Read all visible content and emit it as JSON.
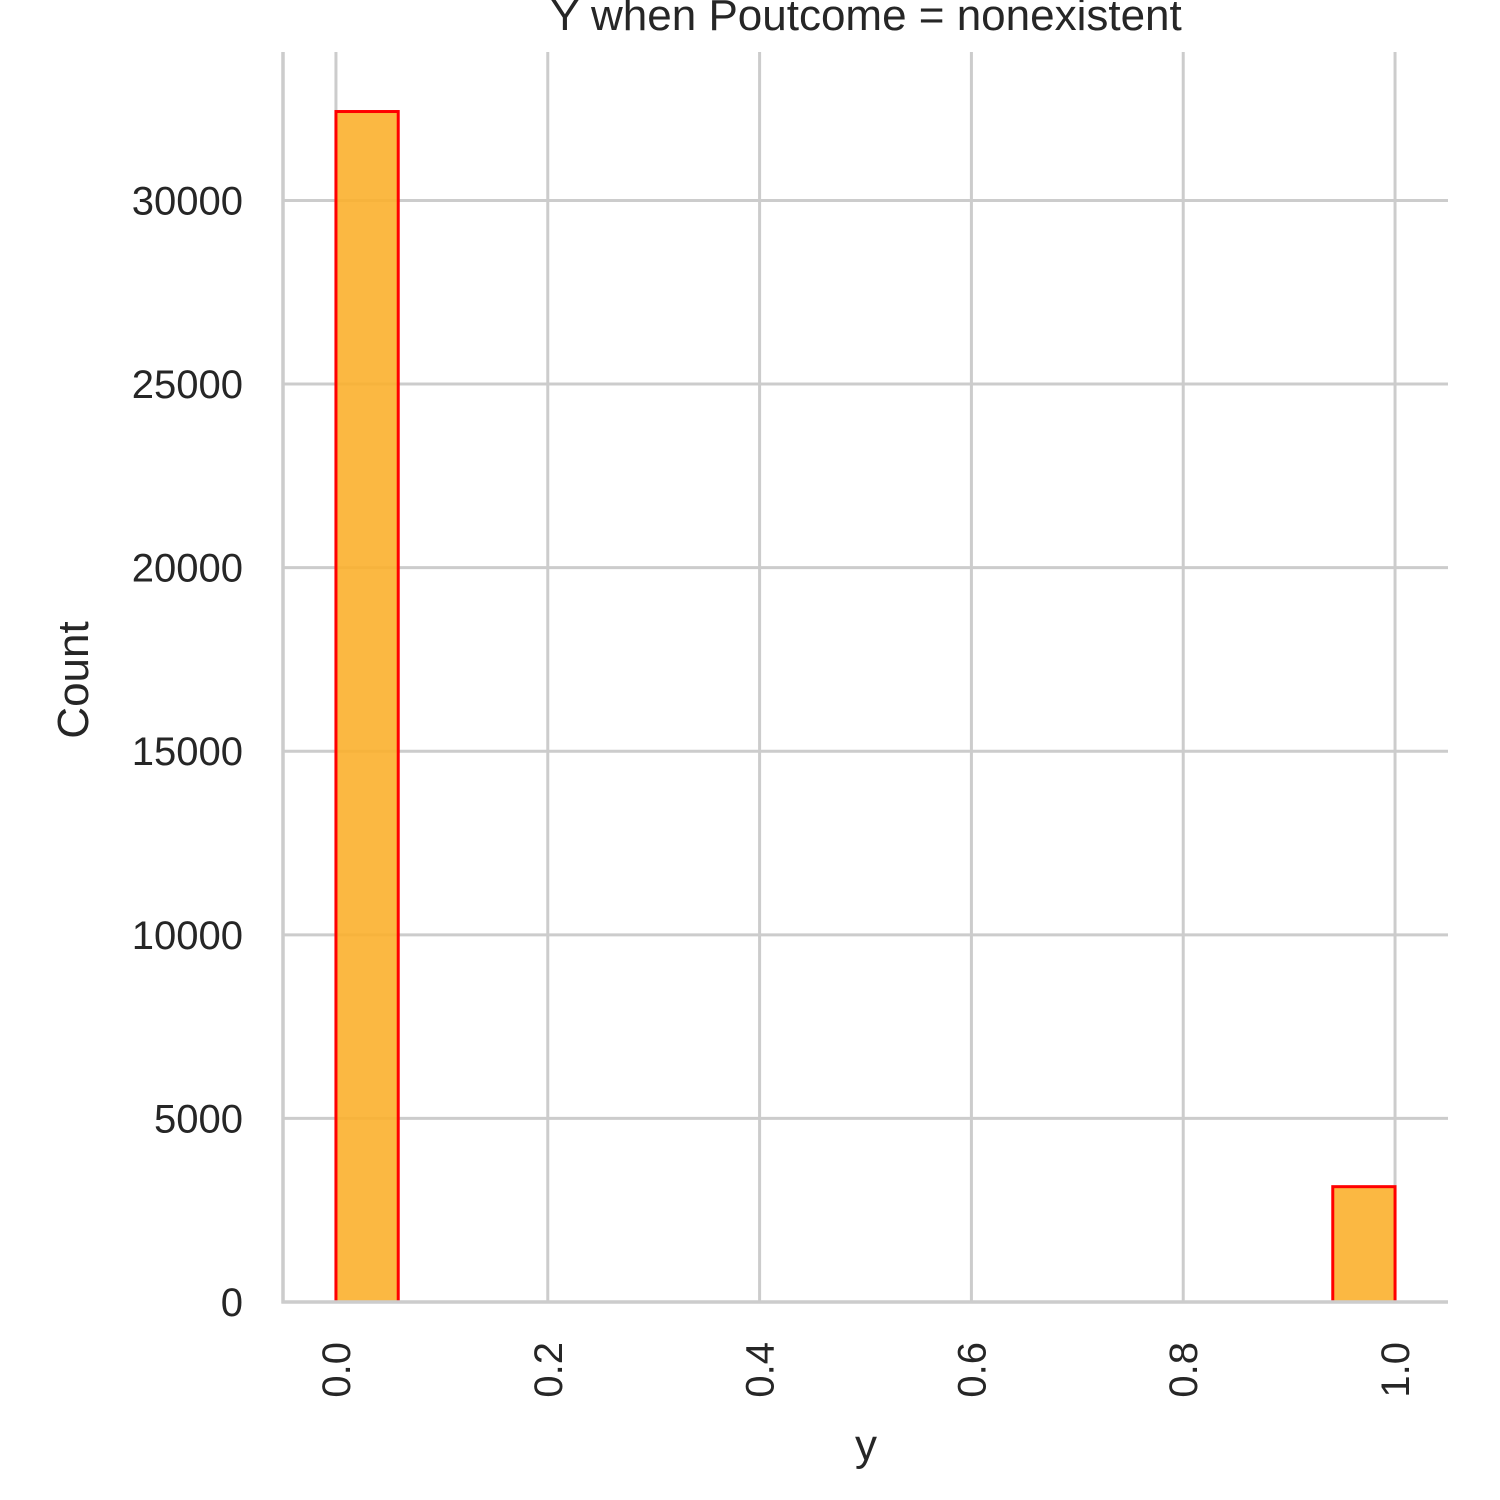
{
  "chart_data": {
    "type": "bar",
    "title": "Y when Poutcome = nonexistent",
    "xlabel": "y",
    "ylabel": "Count",
    "bins": [
      {
        "x0": 0.0,
        "x1": 0.0588,
        "value": 32422
      },
      {
        "x0": 0.9412,
        "x1": 1.0,
        "value": 3141
      }
    ],
    "xlim": [
      -0.05,
      1.05
    ],
    "ylim": [
      0,
      34043
    ],
    "xticks": [
      0.0,
      0.2,
      0.4,
      0.6,
      0.8,
      1.0
    ],
    "xtick_labels": [
      "0.0",
      "0.2",
      "0.4",
      "0.6",
      "0.8",
      "1.0"
    ],
    "yticks": [
      0,
      5000,
      10000,
      15000,
      20000,
      25000,
      30000
    ],
    "ytick_labels": [
      "0",
      "5000",
      "10000",
      "15000",
      "20000",
      "25000",
      "30000"
    ],
    "grid": true,
    "legend": "none",
    "colors": {
      "bar_fill": "#fbb02d",
      "bar_edge": "#ff0000",
      "grid": "#cccccc",
      "axis": "#cccccc",
      "text": "#262626"
    }
  }
}
